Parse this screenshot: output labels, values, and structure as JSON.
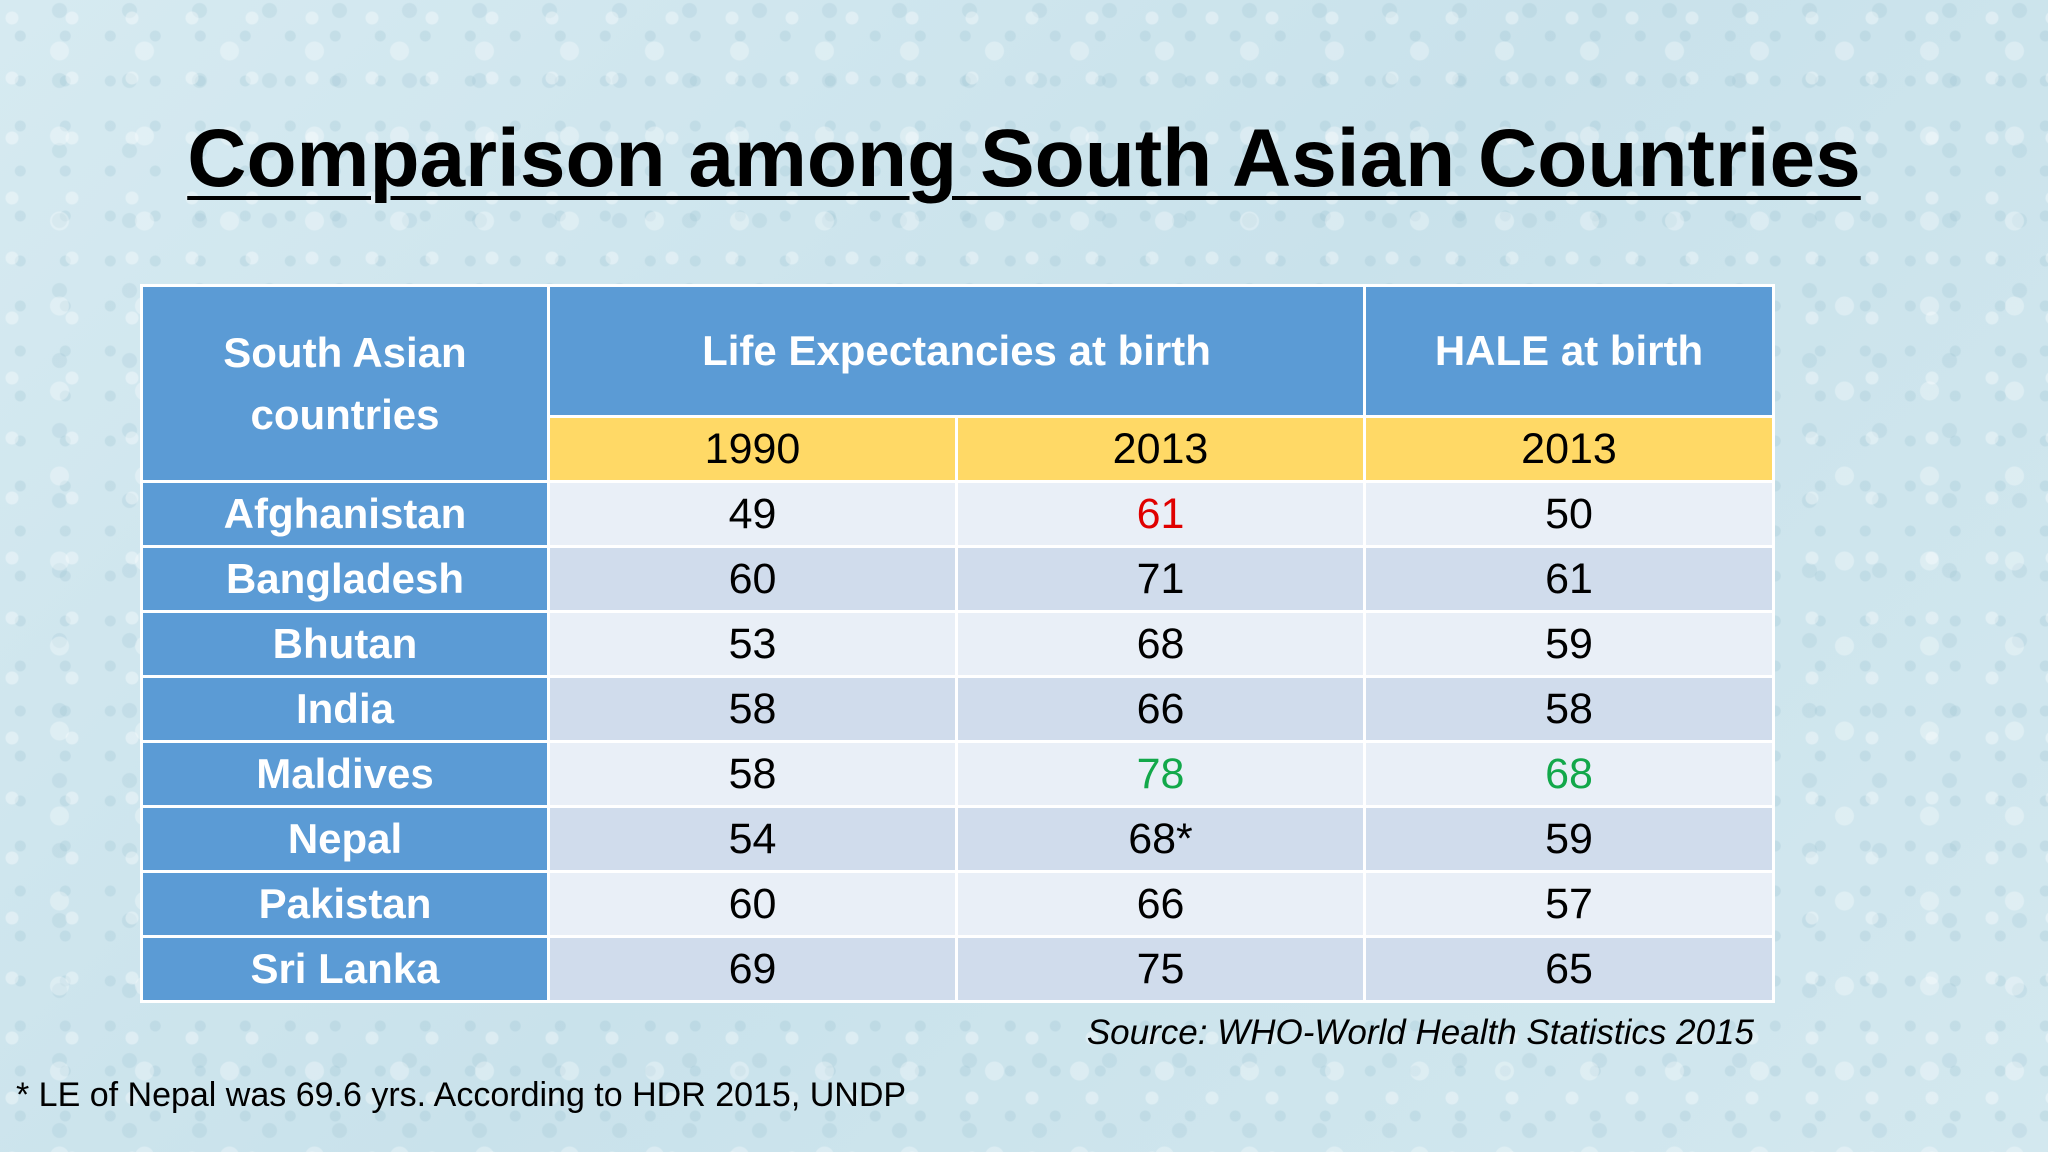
{
  "title": "Comparison among South Asian Countries",
  "table": {
    "header": {
      "country_col": "South Asian\ncountries",
      "le_group": "Life Expectancies at birth",
      "hale_group": "HALE at birth",
      "years": [
        "1990",
        "2013",
        "2013"
      ]
    },
    "rows": [
      {
        "country": "Afghanistan",
        "le1990": "49",
        "le2013": "61",
        "hale2013": "50"
      },
      {
        "country": "Bangladesh",
        "le1990": "60",
        "le2013": "71",
        "hale2013": "61"
      },
      {
        "country": "Bhutan",
        "le1990": "53",
        "le2013": "68",
        "hale2013": "59"
      },
      {
        "country": "India",
        "le1990": "58",
        "le2013": "66",
        "hale2013": "58"
      },
      {
        "country": "Maldives",
        "le1990": "58",
        "le2013": "78",
        "hale2013": "68"
      },
      {
        "country": "Nepal",
        "le1990": "54",
        "le2013": "68*",
        "hale2013": "59"
      },
      {
        "country": "Pakistan",
        "le1990": "60",
        "le2013": "66",
        "hale2013": "57"
      },
      {
        "country": "Sri Lanka",
        "le1990": "69",
        "le2013": "75",
        "hale2013": "65"
      }
    ]
  },
  "colors": {
    "header_blue": "#5b9bd5",
    "year_yellow": "#ffd966",
    "highlight_min": "#e00000",
    "highlight_max": "#12a84a"
  },
  "source": "Source: WHO-World Health Statistics 2015",
  "footnote": "* LE of Nepal was 69.6 yrs. According to HDR 2015, UNDP"
}
